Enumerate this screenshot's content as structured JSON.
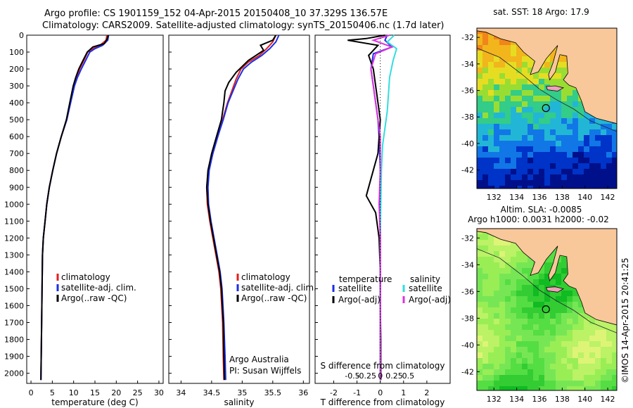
{
  "header": {
    "line1": "Argo profile: CS 1901159_152 04-Apr-2015 20150408_10 37.329S 136.57E",
    "line2": "Climatology: CARS2009. Satellite-adjusted climatology: synTS_20150406.nc (1.7d later)"
  },
  "colors": {
    "climatology": "#e02020",
    "satellite": "#1a2ee6",
    "argo": "#000000",
    "satellite_salinity": "#33dddd",
    "argo_adj_salinity": "#dd33dd",
    "land": "#f8c79a"
  },
  "chart_data": [
    {
      "type": "line",
      "id": "temperature",
      "xlabel": "temperature (deg C)",
      "ylabel": "",
      "xlim": [
        -1,
        31
      ],
      "ylim": [
        2060,
        0
      ],
      "x_ticks": [
        "0",
        "5",
        "10",
        "15",
        "20",
        "25",
        "30"
      ],
      "y_ticks": [
        "0",
        "100",
        "200",
        "300",
        "400",
        "500",
        "600",
        "700",
        "800",
        "900",
        "1000",
        "1100",
        "1200",
        "1300",
        "1400",
        "1500",
        "1600",
        "1700",
        "1800",
        "1900",
        "2000"
      ],
      "legend": {
        "position": "bottom",
        "entries": [
          "climatology",
          "satellite-adj. clim.",
          "Argo(..raw -QC)"
        ]
      },
      "series": [
        {
          "name": "climatology",
          "color_key": "climatology",
          "x": [
            17.8,
            17.6,
            16.2,
            14.5,
            13.3,
            12.4,
            11.4,
            10.7,
            10.0,
            9.2,
            8.4,
            7.1,
            6.0,
            5.1,
            4.3,
            3.7,
            3.3,
            2.9,
            2.7,
            2.6,
            2.5,
            2.4,
            2.3
          ],
          "y": [
            0,
            30,
            60,
            80,
            100,
            150,
            200,
            250,
            300,
            400,
            500,
            600,
            700,
            800,
            900,
            1000,
            1100,
            1200,
            1300,
            1500,
            1700,
            1900,
            2040
          ]
        },
        {
          "name": "satellite-adj. clim.",
          "color_key": "satellite",
          "x": [
            18.2,
            18.0,
            16.8,
            15.0,
            13.8,
            12.8,
            11.8,
            10.9,
            10.2,
            9.3,
            8.4,
            7.1,
            6.0,
            5.1,
            4.3,
            3.7,
            3.3,
            2.9,
            2.7,
            2.6,
            2.5,
            2.4,
            2.3
          ],
          "y": [
            0,
            30,
            60,
            80,
            100,
            150,
            200,
            250,
            300,
            400,
            500,
            600,
            700,
            800,
            900,
            1000,
            1100,
            1200,
            1300,
            1500,
            1700,
            1900,
            2040
          ]
        },
        {
          "name": "Argo(..raw -QC)",
          "color_key": "argo",
          "x": [
            18.1,
            17.9,
            17.2,
            14.5,
            13.2,
            12.2,
            11.2,
            10.5,
            9.9,
            9.1,
            8.3,
            7.1,
            6.0,
            5.1,
            4.3,
            3.7,
            3.3,
            2.9,
            2.7,
            2.6,
            2.5,
            2.4,
            2.35
          ],
          "y": [
            0,
            20,
            50,
            70,
            100,
            150,
            200,
            250,
            300,
            400,
            500,
            600,
            700,
            800,
            900,
            1000,
            1100,
            1200,
            1300,
            1500,
            1700,
            1900,
            2040
          ]
        }
      ]
    },
    {
      "type": "line",
      "id": "salinity",
      "xlabel": "salinity",
      "ylabel": "",
      "xlim": [
        33.8,
        36.1
      ],
      "ylim": [
        2060,
        0
      ],
      "x_ticks": [
        "34",
        "34.5",
        "35",
        "35.5",
        "36"
      ],
      "legend": {
        "position": "bottom",
        "entries": [
          "climatology",
          "satellite-adj. clim.",
          "Argo(..raw -QC)"
        ]
      },
      "annotation": [
        "Argo Australia",
        "PI: Susan Wijffels"
      ],
      "series": [
        {
          "name": "climatology",
          "color_key": "climatology",
          "x": [
            35.55,
            35.5,
            35.4,
            35.28,
            35.1,
            34.98,
            34.9,
            34.83,
            34.76,
            34.68,
            34.6,
            34.52,
            34.45,
            34.42,
            34.43,
            34.47,
            34.52,
            34.57,
            34.62,
            34.65,
            34.68,
            34.69,
            34.7
          ],
          "y": [
            0,
            40,
            80,
            120,
            160,
            200,
            260,
            330,
            400,
            500,
            600,
            700,
            800,
            900,
            1000,
            1100,
            1200,
            1300,
            1400,
            1500,
            1700,
            1900,
            2040
          ]
        },
        {
          "name": "satellite-adj. clim.",
          "color_key": "satellite",
          "x": [
            35.6,
            35.55,
            35.45,
            35.32,
            35.15,
            35.02,
            34.93,
            34.85,
            34.77,
            34.69,
            34.6,
            34.52,
            34.46,
            34.44,
            34.45,
            34.49,
            34.54,
            34.59,
            34.64,
            34.67,
            34.7,
            34.72,
            34.73
          ],
          "y": [
            0,
            40,
            80,
            120,
            160,
            200,
            260,
            330,
            400,
            500,
            600,
            700,
            800,
            900,
            1000,
            1100,
            1200,
            1300,
            1400,
            1500,
            1700,
            1900,
            2040
          ]
        },
        {
          "name": "Argo(..raw -QC)",
          "color_key": "argo",
          "x": [
            35.55,
            35.5,
            35.3,
            35.35,
            35.1,
            34.9,
            34.78,
            34.72,
            34.7,
            34.66,
            34.58,
            34.5,
            34.44,
            34.42,
            34.44,
            34.48,
            34.53,
            34.58,
            34.63,
            34.66,
            34.69,
            34.7,
            34.71
          ],
          "y": [
            0,
            30,
            60,
            90,
            150,
            220,
            280,
            330,
            400,
            500,
            600,
            700,
            800,
            900,
            1000,
            1100,
            1200,
            1300,
            1400,
            1500,
            1700,
            1900,
            2040
          ]
        }
      ]
    },
    {
      "type": "line",
      "id": "difference",
      "xlabel": "T difference from climatology",
      "top_label": "S difference from climatology",
      "xlim": [
        -2.8,
        3.0
      ],
      "ylim": [
        2060,
        0
      ],
      "x_ticks": [
        "-2",
        "-1",
        "0",
        "1",
        "2"
      ],
      "s_ticks": [
        "-0.5",
        "-0.25",
        "0",
        "0.25",
        "0.5"
      ],
      "legend": {
        "position": "bottom",
        "temperature_header": "temperature",
        "salinity_header": "salinity",
        "entries": [
          "satellite",
          "Argo(-adj)",
          "satellite",
          "Argo(-adj)"
        ]
      },
      "series": [
        {
          "name": "temperature satellite",
          "color_key": "satellite",
          "x": [
            0.3,
            0.2,
            0.5,
            -0.3,
            -0.4,
            -0.3,
            -0.2,
            -0.1,
            -0.05,
            0.0,
            0.0,
            0.0,
            0.0,
            0.0,
            0.0,
            0.0
          ],
          "y": [
            0,
            30,
            70,
            110,
            200,
            300,
            400,
            500,
            600,
            800,
            1000,
            1200,
            1400,
            1600,
            1800,
            2040
          ]
        },
        {
          "name": "temperature Argo(-adj)",
          "color_key": "argo",
          "x": [
            0.2,
            -0.6,
            -1.4,
            -0.1,
            -0.5,
            -0.3,
            -0.2,
            -0.1,
            0.0,
            -0.1,
            -0.4,
            -0.6,
            -0.2,
            -0.05,
            0.0,
            0.0,
            0.02,
            0.02
          ],
          "y": [
            0,
            20,
            30,
            60,
            120,
            200,
            300,
            400,
            500,
            700,
            850,
            950,
            1050,
            1200,
            1400,
            1600,
            1800,
            2040
          ]
        },
        {
          "name": "salinity satellite",
          "color_key": "satellite_salinity",
          "x": [
            0.6,
            0.3,
            0.7,
            0.55,
            0.4,
            0.35,
            0.3,
            0.2,
            0.1,
            0.05,
            0.02,
            0.0,
            0.0,
            0.0,
            0.0
          ],
          "y": [
            0,
            40,
            80,
            150,
            250,
            350,
            450,
            550,
            650,
            800,
            1000,
            1200,
            1400,
            1700,
            2040
          ]
        },
        {
          "name": "salinity Argo(-adj)",
          "color_key": "argo_adj_salinity",
          "x": [
            0.4,
            -0.3,
            0.5,
            -0.2,
            -0.4,
            -0.3,
            -0.2,
            -0.1,
            0.0,
            0.0,
            -0.05,
            0.0,
            0.0,
            0.0
          ],
          "y": [
            0,
            30,
            70,
            110,
            200,
            300,
            400,
            500,
            600,
            800,
            1000,
            1200,
            1500,
            2040
          ]
        }
      ]
    },
    {
      "type": "heatmap",
      "id": "sst-map",
      "title": "sat. SST: 18  Argo: 17.9",
      "x_ticks": [
        "132",
        "134",
        "136",
        "138",
        "140",
        "142"
      ],
      "y_ticks": [
        "-32",
        "-34",
        "-36",
        "-38",
        "-40",
        "-42"
      ],
      "xlim": [
        130.5,
        142.8
      ],
      "ylim": [
        -43.4,
        -31.3
      ],
      "marker": {
        "lon": 136.57,
        "lat": -37.329
      }
    },
    {
      "type": "heatmap",
      "id": "sla-map",
      "title_line1": "Altim. SLA: -0.0085",
      "title_line2": "Argo h1000: 0.0031  h2000: -0.02",
      "x_ticks": [
        "132",
        "134",
        "136",
        "138",
        "140",
        "142"
      ],
      "y_ticks": [
        "-32",
        "-34",
        "-36",
        "-38",
        "-40",
        "-42"
      ],
      "xlim": [
        130.5,
        142.8
      ],
      "ylim": [
        -43.4,
        -31.3
      ],
      "marker": {
        "lon": 136.57,
        "lat": -37.329
      }
    }
  ],
  "credit": "©IMOS 14-Apr-2015 20:41:25"
}
